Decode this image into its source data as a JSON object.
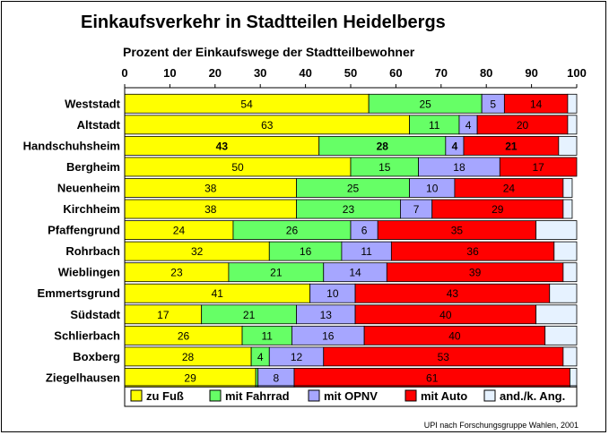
{
  "chart_data": {
    "type": "bar",
    "orientation": "horizontal",
    "stacked": true,
    "title": "Einkaufsverkehr in Stadtteilen Heidelbergs",
    "xlabel": "Prozent der Einkaufswege der Stadtteilbewohner",
    "ylabel": "",
    "xlim": [
      0,
      100
    ],
    "xticks": [
      "0",
      "10",
      "20",
      "30",
      "40",
      "50",
      "60",
      "70",
      "80",
      "90",
      "100"
    ],
    "grid": false,
    "legend_position": "bottom",
    "source": "UPI nach Forschungsgruppe Wahlen, 2001",
    "categories": [
      "Weststadt",
      "Altstadt",
      "Handschuhsheim",
      "Bergheim",
      "Neuenheim",
      "Kirchheim",
      "Pfaffengrund",
      "Rohrbach",
      "Wieblingen",
      "Emmertsgrund",
      "Südstadt",
      "Schlierbach",
      "Boxberg",
      "Ziegelhausen"
    ],
    "bold_categories": [
      "Handschuhsheim"
    ],
    "series": [
      {
        "name": "zu Fuß",
        "color": "#ffff00",
        "values": [
          54,
          63,
          43,
          50,
          38,
          38,
          24,
          32,
          23,
          41,
          17,
          26,
          28,
          29
        ],
        "labels": [
          "54",
          "63",
          "43",
          "50",
          "38",
          "38",
          "24",
          "32",
          "23",
          "41",
          "17",
          "26",
          "28",
          "29"
        ]
      },
      {
        "name": "mit Fahrrad",
        "color": "#66ff66",
        "values": [
          25,
          11,
          28,
          15,
          25,
          23,
          26,
          16,
          21,
          0,
          21,
          11,
          4,
          0.5
        ],
        "labels": [
          "25",
          "11",
          "28",
          "15",
          "25",
          "23",
          "26",
          "16",
          "21",
          "",
          "21",
          "11",
          "4",
          ""
        ]
      },
      {
        "name": "mit OPNV",
        "color": "#a6a6ff",
        "values": [
          5,
          4,
          4,
          18,
          10,
          7,
          6,
          11,
          14,
          10,
          13,
          16,
          12,
          8
        ],
        "labels": [
          "5",
          "4",
          "4",
          "18",
          "10",
          "7",
          "6",
          "11",
          "14",
          "10",
          "13",
          "16",
          "12",
          "8"
        ]
      },
      {
        "name": "mit Auto",
        "color": "#ff0000",
        "values": [
          14,
          20,
          21,
          17,
          24,
          29,
          35,
          36,
          39,
          43,
          40,
          40,
          53,
          61
        ],
        "labels": [
          "14",
          "20",
          "21",
          "17",
          "24",
          "29",
          "35",
          "36",
          "39",
          "43",
          "40",
          "40",
          "53",
          "61"
        ]
      },
      {
        "name": "and./k. Ang.",
        "color": "#e6f2ff",
        "values": [
          2,
          2,
          4,
          0,
          2,
          2,
          9,
          5,
          3,
          6,
          9,
          7,
          3,
          1.5
        ],
        "labels": [
          "",
          "",
          "",
          "",
          "",
          "",
          "",
          "",
          "",
          "",
          "",
          "",
          "",
          ""
        ]
      }
    ]
  }
}
